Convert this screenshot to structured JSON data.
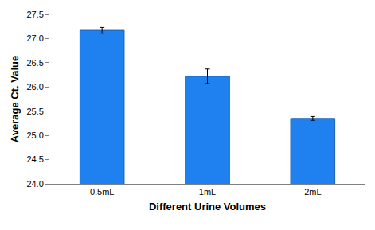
{
  "chart_data": {
    "type": "bar",
    "xlabel": "Different Urine Volumes",
    "ylabel": "Average Ct. Value",
    "categories": [
      "0.5mL",
      "1mL",
      "2mL"
    ],
    "values": [
      27.17,
      26.22,
      25.35
    ],
    "errors": [
      0.06,
      0.15,
      0.04
    ],
    "color": "#1f80f0",
    "ylim": [
      24.0,
      27.5
    ],
    "yticks": [
      {
        "value": 24.0,
        "label": "24.0"
      },
      24.5,
      {
        "value": 25.0,
        "label": "25.0"
      },
      25.5,
      {
        "value": 26.0,
        "label": "26.0"
      },
      26.5,
      {
        "value": 27.0,
        "label": "27.0"
      },
      27.5
    ],
    "grid": false,
    "data_labels": true
  }
}
